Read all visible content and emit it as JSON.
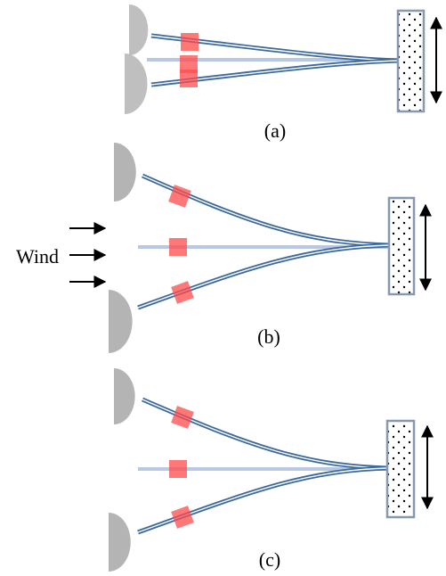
{
  "panels": [
    {
      "label": "(a)"
    },
    {
      "label": "(b)",
      "annotation": "Wind"
    },
    {
      "label": "(c)"
    }
  ]
}
